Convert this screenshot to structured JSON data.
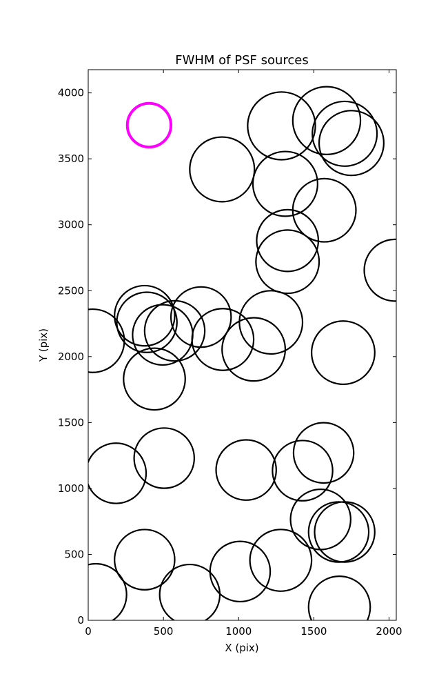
{
  "chart_data": {
    "type": "scatter",
    "title": "FWHM of PSF sources",
    "xlabel": "X (pix)",
    "ylabel": "Y (pix)",
    "xlim": [
      0,
      2048
    ],
    "ylim": [
      0,
      4176
    ],
    "xticks": [
      0,
      500,
      1000,
      1500,
      2000
    ],
    "yticks": [
      0,
      500,
      1000,
      1500,
      2000,
      2500,
      3000,
      3500,
      4000
    ],
    "xtick_labels": [
      "0",
      "500",
      "1000",
      "1500",
      "2000"
    ],
    "ytick_labels": [
      "0",
      "500",
      "1000",
      "1500",
      "2000",
      "2500",
      "3000",
      "3500",
      "4000"
    ],
    "grid": false,
    "marker_colors": {
      "default": "#000000",
      "highlight": "#ff00ff"
    },
    "highlight": {
      "x": 405,
      "y": 3755,
      "r": 145
    },
    "sources": [
      {
        "x": 1285,
        "y": 3750,
        "r": 225
      },
      {
        "x": 1585,
        "y": 3790,
        "r": 225
      },
      {
        "x": 1705,
        "y": 3690,
        "r": 215
      },
      {
        "x": 1750,
        "y": 3620,
        "r": 215
      },
      {
        "x": 890,
        "y": 3420,
        "r": 215
      },
      {
        "x": 1310,
        "y": 3310,
        "r": 215
      },
      {
        "x": 1570,
        "y": 3110,
        "r": 210
      },
      {
        "x": 1325,
        "y": 2880,
        "r": 205
      },
      {
        "x": 1325,
        "y": 2720,
        "r": 210
      },
      {
        "x": 2040,
        "y": 2655,
        "r": 205
      },
      {
        "x": 375,
        "y": 2310,
        "r": 200
      },
      {
        "x": 750,
        "y": 2300,
        "r": 200
      },
      {
        "x": 390,
        "y": 2260,
        "r": 200
      },
      {
        "x": 1215,
        "y": 2260,
        "r": 210
      },
      {
        "x": 495,
        "y": 2165,
        "r": 200
      },
      {
        "x": 575,
        "y": 2195,
        "r": 200
      },
      {
        "x": 30,
        "y": 2120,
        "r": 210
      },
      {
        "x": 895,
        "y": 2130,
        "r": 205
      },
      {
        "x": 1100,
        "y": 2055,
        "r": 210
      },
      {
        "x": 1695,
        "y": 2030,
        "r": 210
      },
      {
        "x": 440,
        "y": 1830,
        "r": 205
      },
      {
        "x": 505,
        "y": 1230,
        "r": 200
      },
      {
        "x": 1565,
        "y": 1270,
        "r": 200
      },
      {
        "x": 185,
        "y": 1115,
        "r": 200
      },
      {
        "x": 1050,
        "y": 1140,
        "r": 200
      },
      {
        "x": 1425,
        "y": 1135,
        "r": 200
      },
      {
        "x": 1545,
        "y": 765,
        "r": 200
      },
      {
        "x": 1665,
        "y": 670,
        "r": 200
      },
      {
        "x": 1705,
        "y": 670,
        "r": 200
      },
      {
        "x": 375,
        "y": 460,
        "r": 200
      },
      {
        "x": 1280,
        "y": 455,
        "r": 205
      },
      {
        "x": 1010,
        "y": 370,
        "r": 200
      },
      {
        "x": 50,
        "y": 195,
        "r": 205
      },
      {
        "x": 675,
        "y": 195,
        "r": 200
      },
      {
        "x": 1670,
        "y": 100,
        "r": 205
      }
    ]
  }
}
